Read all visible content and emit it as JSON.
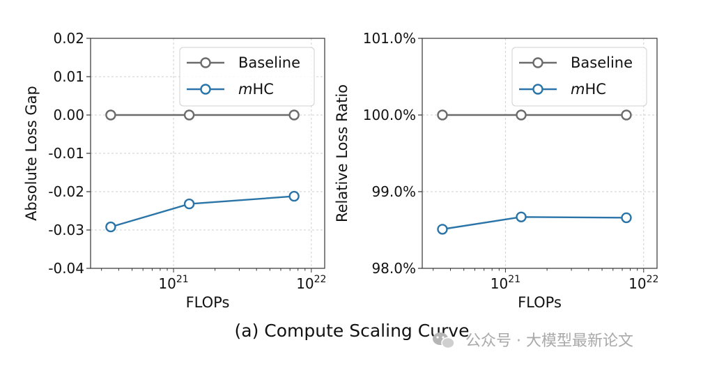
{
  "chart_data": [
    {
      "type": "line",
      "ylabel": "Absolute Loss Gap",
      "xlabel": "FLOPs",
      "xscale": "log",
      "xlim": [
        2.5e+20,
        1.25e+22
      ],
      "ylim": [
        -0.04,
        0.02
      ],
      "yticks": [
        0.02,
        0.01,
        0.0,
        -0.01,
        -0.02,
        -0.03,
        -0.04
      ],
      "ytick_labels": [
        "0.02",
        "0.01",
        "0.00",
        "-0.01",
        "-0.02",
        "-0.03",
        "-0.04"
      ],
      "xticks": [
        1e+21,
        1e+22
      ],
      "xtick_labels": [
        {
          "base": "10",
          "exp": "21"
        },
        {
          "base": "10",
          "exp": "22"
        }
      ],
      "x": [
        3.5e+20,
        1.3e+21,
        7.5e+21
      ],
      "grid": true,
      "legend_position": "upper right",
      "series": [
        {
          "name": "Baseline",
          "name_italic": "",
          "name_rest": "Baseline",
          "color": "#6b6b6b",
          "values": [
            0.0,
            0.0,
            0.0
          ]
        },
        {
          "name": "mHC",
          "name_italic": "m",
          "name_rest": "HC",
          "color": "#2a74a8",
          "values": [
            -0.0292,
            -0.0232,
            -0.0212
          ]
        }
      ]
    },
    {
      "type": "line",
      "ylabel": "Relative Loss Ratio",
      "xlabel": "FLOPs",
      "xscale": "log",
      "xlim": [
        2.5e+20,
        1.25e+22
      ],
      "ylim": [
        98.0,
        101.0
      ],
      "yticks": [
        101.0,
        100.0,
        99.0,
        98.0
      ],
      "ytick_labels": [
        "101.0%",
        "100.0%",
        "99.0%",
        "98.0%"
      ],
      "xticks": [
        1e+21,
        1e+22
      ],
      "xtick_labels": [
        {
          "base": "10",
          "exp": "21"
        },
        {
          "base": "10",
          "exp": "22"
        }
      ],
      "x": [
        3.5e+20,
        1.3e+21,
        7.5e+21
      ],
      "grid": true,
      "legend_position": "upper right",
      "series": [
        {
          "name": "Baseline",
          "name_italic": "",
          "name_rest": "Baseline",
          "color": "#6b6b6b",
          "values": [
            100.0,
            100.0,
            100.0
          ]
        },
        {
          "name": "mHC",
          "name_italic": "m",
          "name_rest": "HC",
          "color": "#2a74a8",
          "values": [
            98.51,
            98.67,
            98.66
          ]
        }
      ]
    }
  ],
  "caption": "(a) Compute Scaling Curve",
  "watermark": {
    "icon": "wechat-icon",
    "text": "公众号 · 大模型最新论文"
  }
}
